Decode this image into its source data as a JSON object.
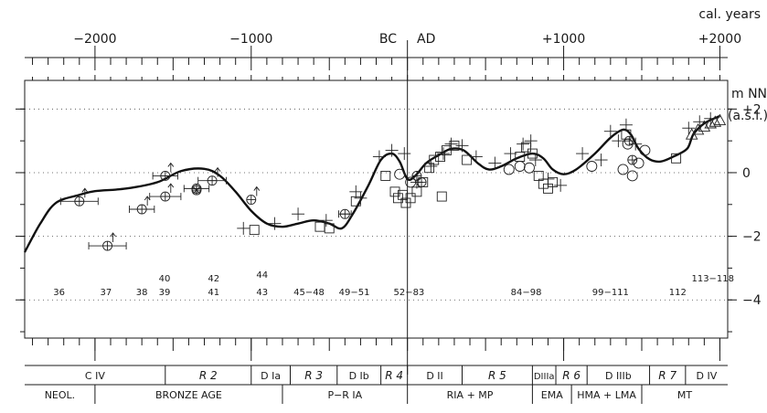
{
  "chart_data": {
    "type": "scatter",
    "unit_top": "cal. years",
    "unit_right": "m NN",
    "unit_right_sub": "(a.s.l.)",
    "bc_label": "BC",
    "ad_label": "AD",
    "xlim": [
      -2450,
      2050
    ],
    "ylim": [
      -5.2,
      2.9
    ],
    "x_ticks": [
      {
        "v": -2000,
        "label": "−2000"
      },
      {
        "v": -1000,
        "label": "−1000"
      },
      {
        "v": 1000,
        "label": "+1000"
      },
      {
        "v": 2000,
        "label": "+2000"
      }
    ],
    "y_ticks": [
      {
        "v": 2,
        "label": "+2"
      },
      {
        "v": 0,
        "label": "0"
      },
      {
        "v": -2,
        "label": "−2"
      },
      {
        "v": -4,
        "label": "−4"
      }
    ],
    "grid": "dotted horizontal at y ticks",
    "curve": [
      [
        -2450,
        -2.5
      ],
      [
        -2350,
        -1.6
      ],
      [
        -2250,
        -0.95
      ],
      [
        -2100,
        -0.7
      ],
      [
        -2000,
        -0.58
      ],
      [
        -1800,
        -0.5
      ],
      [
        -1600,
        -0.3
      ],
      [
        -1450,
        0.05
      ],
      [
        -1300,
        0.12
      ],
      [
        -1200,
        -0.1
      ],
      [
        -1100,
        -0.6
      ],
      [
        -1000,
        -1.2
      ],
      [
        -900,
        -1.6
      ],
      [
        -800,
        -1.7
      ],
      [
        -700,
        -1.6
      ],
      [
        -600,
        -1.5
      ],
      [
        -500,
        -1.6
      ],
      [
        -420,
        -1.75
      ],
      [
        -350,
        -1.3
      ],
      [
        -250,
        -0.4
      ],
      [
        -170,
        0.4
      ],
      [
        -100,
        0.6
      ],
      [
        -50,
        0.35
      ],
      [
        0,
        -0.2
      ],
      [
        50,
        -0.1
      ],
      [
        120,
        0.3
      ],
      [
        200,
        0.55
      ],
      [
        280,
        0.75
      ],
      [
        360,
        0.7
      ],
      [
        450,
        0.3
      ],
      [
        520,
        0.1
      ],
      [
        600,
        0.2
      ],
      [
        700,
        0.45
      ],
      [
        800,
        0.6
      ],
      [
        870,
        0.45
      ],
      [
        930,
        0.1
      ],
      [
        1000,
        -0.05
      ],
      [
        1080,
        0.1
      ],
      [
        1200,
        0.6
      ],
      [
        1300,
        1.1
      ],
      [
        1380,
        1.35
      ],
      [
        1430,
        1.2
      ],
      [
        1480,
        0.75
      ],
      [
        1550,
        0.42
      ],
      [
        1620,
        0.35
      ],
      [
        1700,
        0.5
      ],
      [
        1790,
        0.75
      ],
      [
        1830,
        1.2
      ],
      [
        1900,
        1.55
      ],
      [
        2000,
        1.78
      ]
    ],
    "points_circle_cross": [
      {
        "x": -2100,
        "y": -0.9,
        "xerr": 120,
        "arrow": true
      },
      {
        "x": -1920,
        "y": -2.3,
        "xerr": 120,
        "arrow": true
      },
      {
        "x": -1700,
        "y": -1.15,
        "xerr": 80,
        "arrow": true
      },
      {
        "x": -1550,
        "y": -0.75,
        "xerr": 100,
        "arrow": true
      },
      {
        "x": -1550,
        "y": -0.1,
        "xerr": 80,
        "arrow": true
      },
      {
        "x": -1350,
        "y": -0.5,
        "xerr": 80,
        "arrow": false
      },
      {
        "x": -1250,
        "y": -0.25,
        "xerr": 90,
        "arrow": true
      },
      {
        "x": -1000,
        "y": -0.85,
        "xerr": 0,
        "arrow": true
      },
      {
        "x": -400,
        "y": -1.3,
        "xerr": 40,
        "arrow": false
      },
      {
        "x": 60,
        "y": -0.1,
        "xerr": 0,
        "arrow": false
      },
      {
        "x": 90,
        "y": -0.3,
        "xerr": 0,
        "arrow": false
      },
      {
        "x": 1440,
        "y": 0.4,
        "xerr": 0,
        "arrow": false
      },
      {
        "x": 1420,
        "y": 1.0,
        "xerr": 0,
        "arrow": false
      }
    ],
    "points_star": [
      {
        "x": -1350,
        "y": -0.55
      }
    ],
    "points_circle": [
      {
        "x": 650,
        "y": 0.1
      },
      {
        "x": 720,
        "y": 0.2
      },
      {
        "x": 780,
        "y": 0.15
      },
      {
        "x": 1180,
        "y": 0.2
      },
      {
        "x": 1380,
        "y": 0.1
      },
      {
        "x": 1410,
        "y": 0.9
      },
      {
        "x": 1440,
        "y": -0.1
      },
      {
        "x": 1480,
        "y": 0.3
      },
      {
        "x": 1520,
        "y": 0.7
      },
      {
        "x": -50,
        "y": -0.05
      },
      {
        "x": 20,
        "y": -0.3
      }
    ],
    "points_plus": [
      {
        "x": -1050,
        "y": -1.75
      },
      {
        "x": -850,
        "y": -1.6
      },
      {
        "x": -700,
        "y": -1.3
      },
      {
        "x": -520,
        "y": -1.5
      },
      {
        "x": -330,
        "y": -0.6
      },
      {
        "x": -300,
        "y": -0.8
      },
      {
        "x": -180,
        "y": 0.5
      },
      {
        "x": -100,
        "y": 0.7
      },
      {
        "x": -20,
        "y": 0.6
      },
      {
        "x": 60,
        "y": -0.3
      },
      {
        "x": 150,
        "y": 0.2
      },
      {
        "x": 230,
        "y": 0.6
      },
      {
        "x": 280,
        "y": 0.9
      },
      {
        "x": 350,
        "y": 0.85
      },
      {
        "x": 440,
        "y": 0.5
      },
      {
        "x": 560,
        "y": 0.3
      },
      {
        "x": 660,
        "y": 0.6
      },
      {
        "x": 740,
        "y": 0.9
      },
      {
        "x": 790,
        "y": 1.0
      },
      {
        "x": 820,
        "y": 0.4
      },
      {
        "x": 900,
        "y": -0.2
      },
      {
        "x": 980,
        "y": -0.4
      },
      {
        "x": 1120,
        "y": 0.6
      },
      {
        "x": 1240,
        "y": 0.4
      },
      {
        "x": 1300,
        "y": 1.3
      },
      {
        "x": 1350,
        "y": 1.0
      },
      {
        "x": 1400,
        "y": 1.5
      },
      {
        "x": 1460,
        "y": 0.9
      },
      {
        "x": 1800,
        "y": 1.4
      },
      {
        "x": 1870,
        "y": 1.6
      },
      {
        "x": 1940,
        "y": 1.7
      }
    ],
    "points_square": [
      {
        "x": -980,
        "y": -1.8
      },
      {
        "x": -560,
        "y": -1.7
      },
      {
        "x": -500,
        "y": -1.75
      },
      {
        "x": -330,
        "y": -0.9
      },
      {
        "x": -140,
        "y": -0.1
      },
      {
        "x": -80,
        "y": -0.6
      },
      {
        "x": -60,
        "y": -0.8
      },
      {
        "x": -30,
        "y": -0.7
      },
      {
        "x": -10,
        "y": -0.95
      },
      {
        "x": 20,
        "y": -0.8
      },
      {
        "x": 60,
        "y": -0.6
      },
      {
        "x": 100,
        "y": -0.3
      },
      {
        "x": 140,
        "y": 0.15
      },
      {
        "x": 170,
        "y": 0.4
      },
      {
        "x": 210,
        "y": 0.5
      },
      {
        "x": 250,
        "y": 0.7
      },
      {
        "x": 300,
        "y": 0.85
      },
      {
        "x": 380,
        "y": 0.4
      },
      {
        "x": 220,
        "y": -0.75
      },
      {
        "x": 720,
        "y": 0.5
      },
      {
        "x": 760,
        "y": 0.8
      },
      {
        "x": 800,
        "y": 0.6
      },
      {
        "x": 840,
        "y": -0.1
      },
      {
        "x": 870,
        "y": -0.35
      },
      {
        "x": 900,
        "y": -0.5
      },
      {
        "x": 930,
        "y": -0.3
      },
      {
        "x": 1400,
        "y": 1.2
      },
      {
        "x": 1720,
        "y": 0.45
      }
    ],
    "points_triangle": [
      {
        "x": 1820,
        "y": 1.2
      },
      {
        "x": 1860,
        "y": 1.35
      },
      {
        "x": 1900,
        "y": 1.45
      },
      {
        "x": 1940,
        "y": 1.55
      },
      {
        "x": 1970,
        "y": 1.6
      },
      {
        "x": 2000,
        "y": 1.65
      }
    ],
    "sample_labels": [
      {
        "x": -2230,
        "text": "36",
        "row": 2
      },
      {
        "x": -1930,
        "text": "37",
        "row": 2
      },
      {
        "x": -1700,
        "text": "38",
        "row": 2
      },
      {
        "x": -1555,
        "text": "39",
        "row": 2
      },
      {
        "x": -1555,
        "text": "40",
        "row": 1
      },
      {
        "x": -1240,
        "text": "41",
        "row": 2
      },
      {
        "x": -1240,
        "text": "42",
        "row": 1
      },
      {
        "x": -930,
        "text": "43",
        "row": 2
      },
      {
        "x": -930,
        "text": "44",
        "row": 0
      },
      {
        "x": -630,
        "text": "45−48",
        "row": 2
      },
      {
        "x": -340,
        "text": "49−51",
        "row": 2
      },
      {
        "x": 10,
        "text": "52−83",
        "row": 2
      },
      {
        "x": 760,
        "text": "84−98",
        "row": 2
      },
      {
        "x": 1300,
        "text": "99−111",
        "row": 2
      },
      {
        "x": 1730,
        "text": "112",
        "row": 2
      },
      {
        "x": 1955,
        "text": "113−118",
        "row": 1
      }
    ],
    "periods_row1": [
      {
        "from": -2450,
        "to": -1550,
        "label": "C  IV",
        "italic": false
      },
      {
        "from": -1550,
        "to": -1000,
        "label": "R  2",
        "italic": true
      },
      {
        "from": -1000,
        "to": -750,
        "label": "D  Ia",
        "italic": false
      },
      {
        "from": -750,
        "to": -450,
        "label": "R  3",
        "italic": true
      },
      {
        "from": -450,
        "to": -170,
        "label": "D  Ib",
        "italic": false
      },
      {
        "from": -170,
        "to": 0,
        "label": "R  4",
        "italic": true
      },
      {
        "from": 0,
        "to": 350,
        "label": "D  II",
        "italic": false
      },
      {
        "from": 350,
        "to": 800,
        "label": "R  5",
        "italic": true
      },
      {
        "from": 800,
        "to": 950,
        "label": "DIIIa",
        "italic": false
      },
      {
        "from": 950,
        "to": 1150,
        "label": "R  6",
        "italic": true
      },
      {
        "from": 1150,
        "to": 1550,
        "label": "D  IIIb",
        "italic": false
      },
      {
        "from": 1550,
        "to": 1780,
        "label": "R  7",
        "italic": true
      },
      {
        "from": 1780,
        "to": 2050,
        "label": "D  IV",
        "italic": false
      }
    ],
    "periods_row2": [
      {
        "from": -2450,
        "to": -2000,
        "label": "NEOL."
      },
      {
        "from": -2000,
        "to": -800,
        "label": "BRONZE  AGE"
      },
      {
        "from": -800,
        "to": 0,
        "label": "P−R  IA"
      },
      {
        "from": 0,
        "to": 800,
        "label": "RIA  +  MP"
      },
      {
        "from": 800,
        "to": 1050,
        "label": "EMA"
      },
      {
        "from": 1050,
        "to": 1500,
        "label": "HMA  +  LMA"
      },
      {
        "from": 1500,
        "to": 2050,
        "label": "MT"
      }
    ]
  }
}
